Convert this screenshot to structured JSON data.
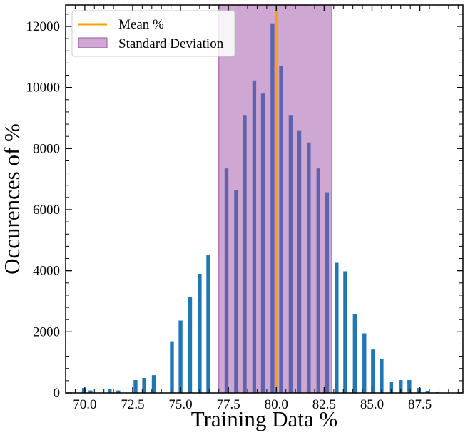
{
  "chart_data": {
    "type": "bar",
    "xlabel": "Training Data %",
    "ylabel": "Occurences of %",
    "xlim": [
      69.0,
      89.75
    ],
    "ylim": [
      0,
      12700
    ],
    "xticks": [
      70.0,
      72.5,
      75.0,
      77.5,
      80.0,
      82.5,
      85.0,
      87.5
    ],
    "xtick_labels": [
      "70.0",
      "72.5",
      "75.0",
      "77.5",
      "80.0",
      "82.5",
      "85.0",
      "87.5"
    ],
    "yticks": [
      0,
      2000,
      4000,
      6000,
      8000,
      10000,
      12000
    ],
    "ytick_labels": [
      "0",
      "2000",
      "4000",
      "6000",
      "8000",
      "10000",
      "12000"
    ],
    "bar_width": 0.2,
    "bar_color": "#1f77b4",
    "series": [
      {
        "x": [
          69.95,
          70.3,
          71.3,
          71.75,
          72.65,
          73.1,
          73.6,
          74.55,
          75.0,
          75.5,
          76.0,
          76.45,
          77.4,
          77.9,
          78.35,
          78.85,
          79.3,
          79.8,
          80.25,
          80.75,
          81.2,
          81.7,
          82.2,
          82.65,
          83.15,
          83.6,
          84.1,
          84.6,
          85.05,
          85.5,
          86.0,
          86.5,
          86.95,
          87.45,
          87.9,
          88.4
        ],
        "values": [
          160,
          80,
          140,
          80,
          420,
          490,
          580,
          1690,
          2370,
          3140,
          3900,
          4530,
          7350,
          6650,
          9100,
          10230,
          9800,
          12100,
          10700,
          9100,
          8600,
          8200,
          7350,
          6570,
          4260,
          3980,
          2570,
          1950,
          1420,
          1120,
          350,
          420,
          420,
          160,
          50,
          20
        ]
      }
    ],
    "mean_line": {
      "label": "Mean %",
      "x": 80.0,
      "color": "#ff9f00"
    },
    "std_band": {
      "label": "Standard Deviation",
      "x_start": 77.0,
      "x_end": 82.9,
      "color": "#a050a8",
      "alpha": 0.5
    },
    "legend_position": "upper-left",
    "grid": false
  }
}
